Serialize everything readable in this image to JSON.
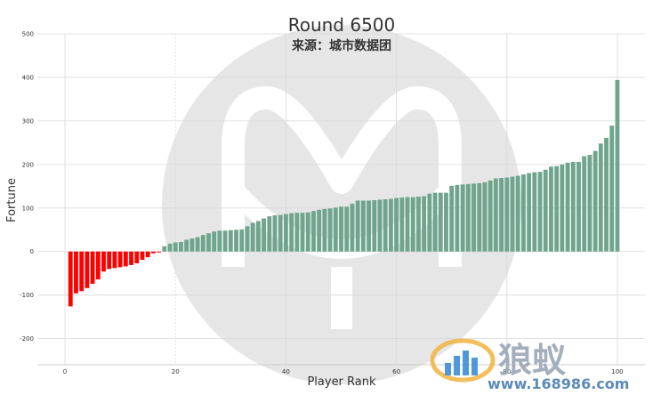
{
  "header": {
    "title": "Round 6500",
    "subtitle": "来源：城市数据团"
  },
  "watermark_logo": {
    "text": "狼蚁",
    "url": "www.168986.com"
  },
  "colors": {
    "positive": "#6fa58c",
    "negative": "#ff0000",
    "grid": "#d9d9d9",
    "axis": "#cccccc",
    "background_logo": "#e6e6e6",
    "text": "#333333"
  },
  "chart_data": {
    "type": "bar",
    "title": "Round 6500",
    "subtitle": "来源：城市数据团",
    "xlabel": "Player Rank",
    "ylabel": "Fortune",
    "xlim": [
      -5,
      105
    ],
    "ylim": [
      -260,
      500
    ],
    "x_ticks": [
      0,
      20,
      40,
      60,
      80,
      100
    ],
    "y_ticks": [
      -200,
      -100,
      0,
      100,
      200,
      300,
      400,
      500
    ],
    "grid": true,
    "x": [
      1,
      2,
      3,
      4,
      5,
      6,
      7,
      8,
      9,
      10,
      11,
      12,
      13,
      14,
      15,
      16,
      17,
      18,
      19,
      20,
      21,
      22,
      23,
      24,
      25,
      26,
      27,
      28,
      29,
      30,
      31,
      32,
      33,
      34,
      35,
      36,
      37,
      38,
      39,
      40,
      41,
      42,
      43,
      44,
      45,
      46,
      47,
      48,
      49,
      50,
      51,
      52,
      53,
      54,
      55,
      56,
      57,
      58,
      59,
      60,
      61,
      62,
      63,
      64,
      65,
      66,
      67,
      68,
      69,
      70,
      71,
      72,
      73,
      74,
      75,
      76,
      77,
      78,
      79,
      80,
      81,
      82,
      83,
      84,
      85,
      86,
      87,
      88,
      89,
      90,
      91,
      92,
      93,
      94,
      95,
      96,
      97,
      98,
      99,
      100
    ],
    "values": [
      -126,
      -96,
      -91,
      -84,
      -74,
      -64,
      -46,
      -40,
      -38,
      -36,
      -34,
      -31,
      -27,
      -19,
      -13,
      -4,
      -2,
      12,
      18,
      21,
      22,
      27,
      30,
      33,
      38,
      42,
      46,
      48,
      48,
      49,
      50,
      51,
      58,
      66,
      70,
      76,
      81,
      83,
      84,
      86,
      88,
      89,
      89,
      90,
      93,
      96,
      98,
      99,
      101,
      103,
      103,
      110,
      117,
      117,
      117,
      118,
      119,
      120,
      121,
      123,
      124,
      125,
      125,
      126,
      127,
      133,
      135,
      135,
      135,
      151,
      153,
      154,
      155,
      156,
      157,
      159,
      163,
      168,
      169,
      170,
      172,
      174,
      177,
      180,
      182,
      183,
      188,
      195,
      196,
      200,
      204,
      206,
      206,
      219,
      222,
      231,
      248,
      261,
      289,
      394
    ]
  }
}
